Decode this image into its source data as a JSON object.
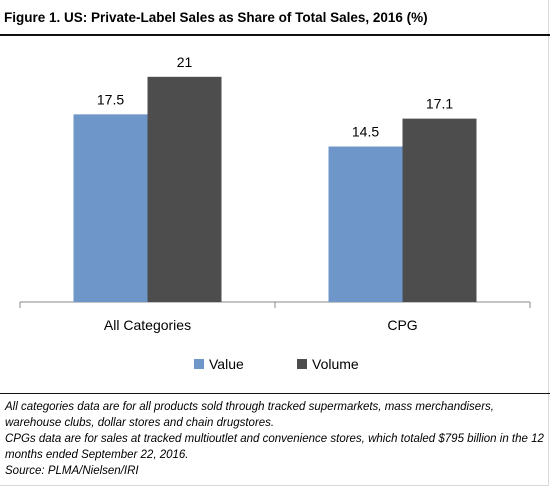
{
  "title": "Figure 1. US: Private-Label Sales as Share of Total Sales, 2016 (%)",
  "chart_data": {
    "type": "bar",
    "categories": [
      "All Categories",
      "CPG"
    ],
    "series": [
      {
        "name": "Value",
        "values": [
          17.5,
          14.5
        ],
        "color": "#6f96c9"
      },
      {
        "name": "Volume",
        "values": [
          21,
          17.1
        ],
        "color": "#4d4d4d"
      }
    ],
    "data_labels": [
      [
        "17.5",
        "14.5"
      ],
      [
        "21",
        "17.1"
      ]
    ],
    "ylim": [
      0,
      23.5
    ],
    "xlabel": "",
    "ylabel": "",
    "grid": false,
    "legend": "bottom"
  },
  "notes": [
    "All categories data are for all products sold through tracked supermarkets, mass merchandisers, warehouse clubs, dollar stores and chain drugstores.",
    "CPGs data are for sales at tracked multioutlet and convenience stores, which totaled $795 billion in the 12 months ended September 22, 2016.",
    "Source: PLMA/Nielsen/IRI"
  ]
}
